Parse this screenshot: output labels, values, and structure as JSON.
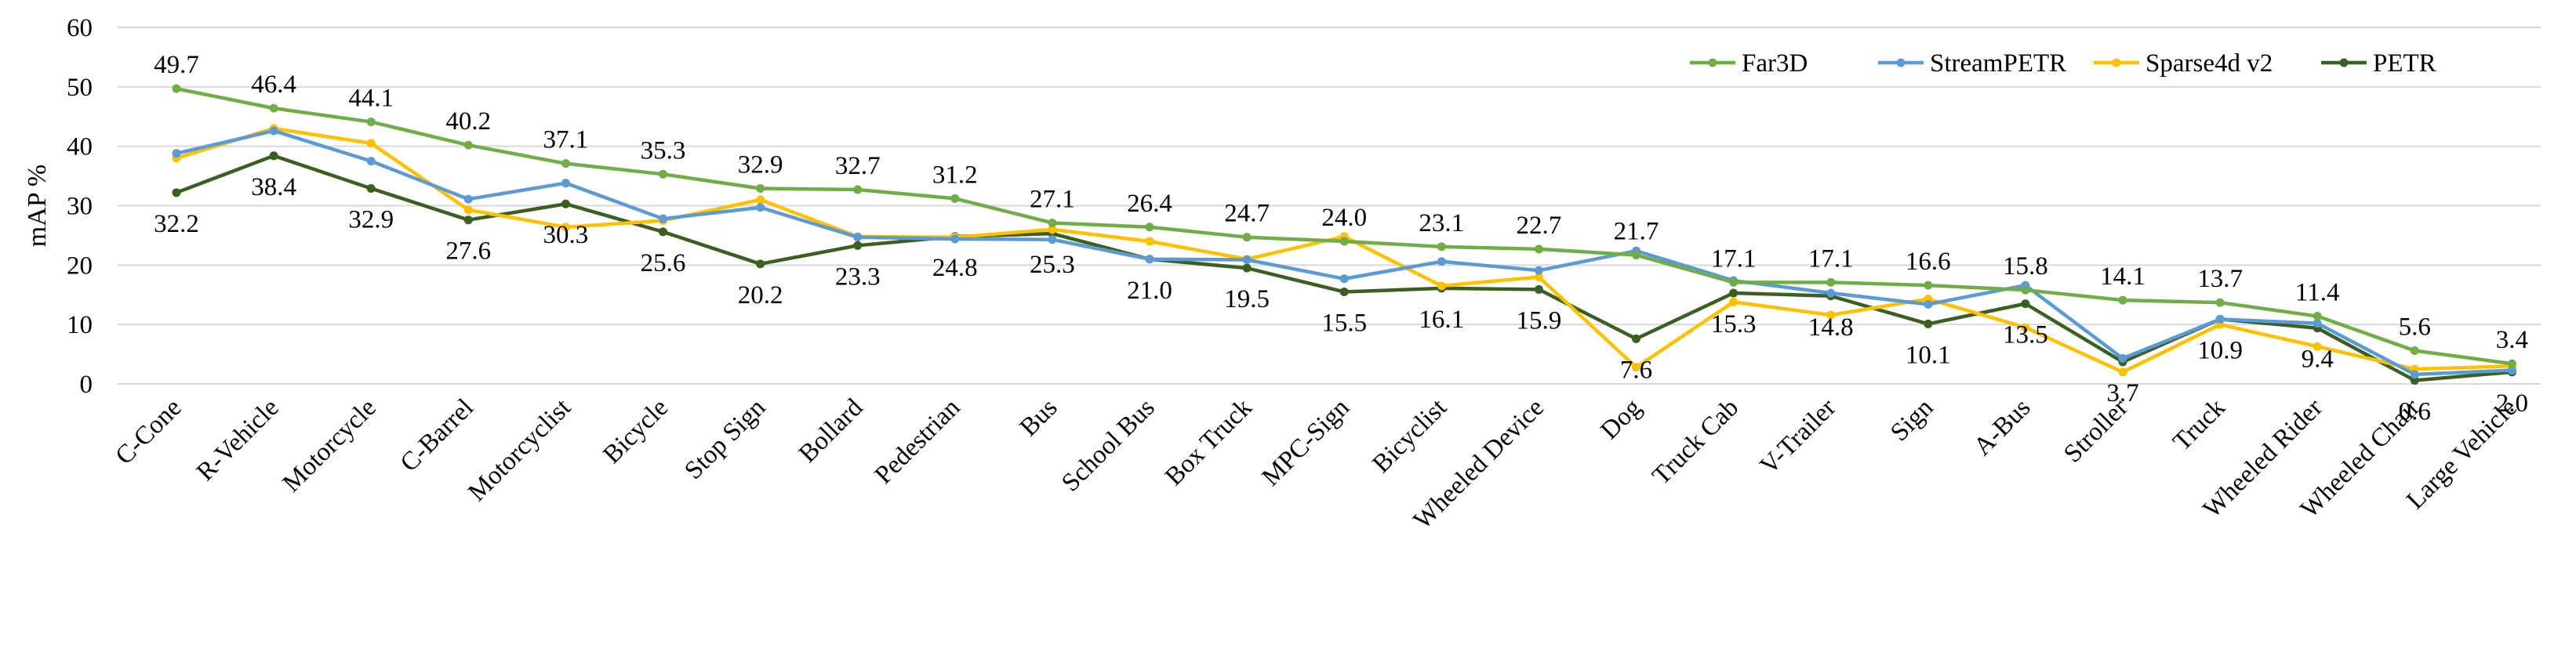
{
  "chart_data": {
    "type": "line",
    "ylabel": "mAP %",
    "ylim": [
      0,
      60
    ],
    "yticks": [
      0,
      10,
      20,
      30,
      40,
      50,
      60
    ],
    "grid": "horizontal",
    "legend_position": "top-right",
    "categories": [
      "C-Cone",
      "R-Vehicle",
      "Motorcycle",
      "C-Barrel",
      "Motorcyclist",
      "Bicycle",
      "Stop Sign",
      "Bollard",
      "Pedestrian",
      "Bus",
      "School Bus",
      "Box Truck",
      "MPC-Sign",
      "Bicyclist",
      "Wheeled Device",
      "Dog",
      "Truck Cab",
      "V-Trailer",
      "Sign",
      "A-Bus",
      "Stroller",
      "Truck",
      "Wheeled Rider",
      "Wheeled Chair",
      "Large Vehicle"
    ],
    "series": [
      {
        "name": "Far3D",
        "color": "#70ad47",
        "labeled": true,
        "label_position": "above",
        "values": [
          49.7,
          46.4,
          44.1,
          40.2,
          37.1,
          35.3,
          32.9,
          32.7,
          31.2,
          27.1,
          26.4,
          24.7,
          24.0,
          23.1,
          22.7,
          21.7,
          17.1,
          17.1,
          16.6,
          15.8,
          14.1,
          13.7,
          11.4,
          5.6,
          3.4
        ]
      },
      {
        "name": "StreamPETR",
        "color": "#5b9bd5",
        "labeled": false,
        "values": [
          38.8,
          42.6,
          37.5,
          31.1,
          33.8,
          27.8,
          29.7,
          24.7,
          24.4,
          24.3,
          21.0,
          20.9,
          17.7,
          20.6,
          19.1,
          22.4,
          17.4,
          15.3,
          13.4,
          16.6,
          4.3,
          10.9,
          10.2,
          1.6,
          2.3
        ]
      },
      {
        "name": "Sparse4d v2",
        "color": "#ffc000",
        "labeled": false,
        "values": [
          38.0,
          43.0,
          40.5,
          29.3,
          26.4,
          27.5,
          31.0,
          24.8,
          24.7,
          26.0,
          24.0,
          21.0,
          24.8,
          16.5,
          18.0,
          2.8,
          13.8,
          11.6,
          14.3,
          9.5,
          2.0,
          10.0,
          6.3,
          2.5,
          3.0
        ]
      },
      {
        "name": "PETR",
        "color": "#3a5f1e",
        "labeled": true,
        "label_position": "below",
        "values": [
          32.2,
          38.4,
          32.9,
          27.6,
          30.3,
          25.6,
          20.2,
          23.3,
          24.8,
          25.3,
          21.0,
          19.5,
          15.5,
          16.1,
          15.9,
          7.6,
          15.3,
          14.8,
          10.1,
          13.5,
          3.7,
          10.9,
          9.4,
          0.6,
          2.0
        ]
      }
    ]
  }
}
